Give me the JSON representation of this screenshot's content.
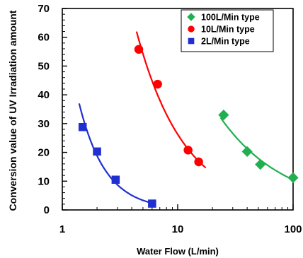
{
  "chart_data": {
    "type": "scatter",
    "xlabel": "Water Flow (L/min)",
    "ylabel": "Conversion value of UV Irradiation amount",
    "x_scale": "log",
    "xlim": [
      1,
      100
    ],
    "ylim": [
      0,
      70
    ],
    "x_ticks": [
      1,
      10,
      100
    ],
    "x_tick_labels": [
      "1",
      "10",
      "100"
    ],
    "y_ticks": [
      0,
      10,
      20,
      30,
      40,
      50,
      60,
      70
    ],
    "y_tick_labels": [
      "0",
      "10",
      "20",
      "30",
      "40",
      "50",
      "60",
      "70"
    ],
    "grid": false,
    "legend_position": "top-right",
    "series": [
      {
        "name": "100L/Min type",
        "marker": "diamond",
        "color": "#20b050",
        "x": [
          25,
          40,
          52,
          100
        ],
        "y": [
          33,
          20.3,
          15.8,
          11.2
        ],
        "trend_x": [
          23.5,
          100
        ]
      },
      {
        "name": "10L/Min type",
        "marker": "circle",
        "color": "#ff0000",
        "x": [
          4.6,
          6.7,
          12.3,
          15.2
        ],
        "y": [
          55.8,
          43.7,
          20.8,
          16.7
        ],
        "trend_x": [
          4.4,
          17.5
        ]
      },
      {
        "name": "2L/Min type",
        "marker": "square",
        "color": "#1f2fd0",
        "x": [
          1.5,
          2,
          2.9,
          6
        ],
        "y": [
          28.8,
          20.3,
          10.5,
          2.2
        ],
        "trend_x": [
          1.4,
          6.4
        ]
      }
    ]
  }
}
